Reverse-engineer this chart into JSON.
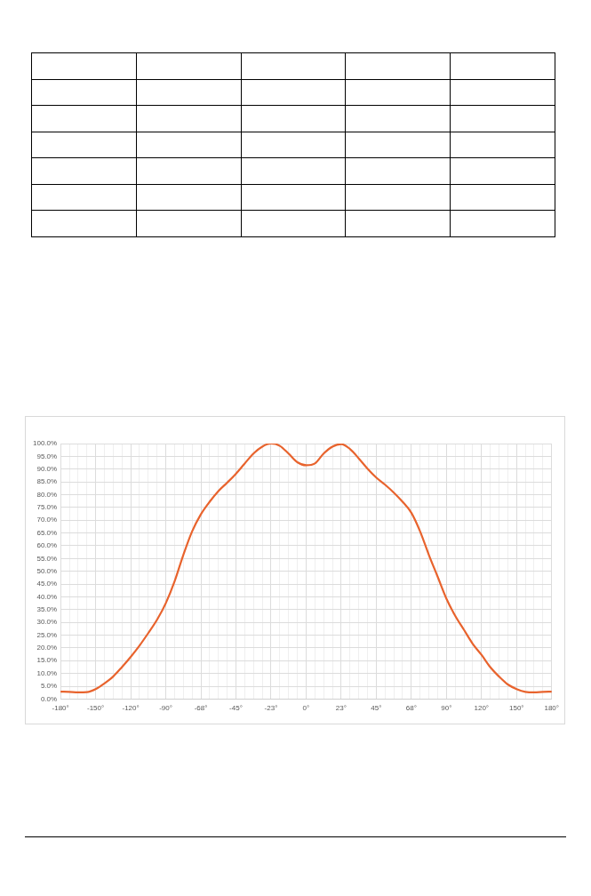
{
  "chart_data": {
    "type": "line",
    "categories": [
      "-180°",
      null,
      null,
      null,
      "-150°",
      null,
      null,
      null,
      "-120°",
      null,
      null,
      null,
      "-90°",
      null,
      null,
      null,
      "-68°",
      null,
      null,
      null,
      "-45°",
      null,
      null,
      null,
      "-23°",
      null,
      null,
      null,
      "0°",
      null,
      null,
      null,
      "23°",
      null,
      null,
      null,
      "45°",
      null,
      null,
      null,
      "68°",
      null,
      null,
      null,
      "90°",
      null,
      null,
      null,
      "120°",
      null,
      null,
      null,
      "150°",
      null,
      null,
      null,
      "180°"
    ],
    "series": [
      {
        "color": "#e8632d",
        "values": [
          2.9,
          2.8,
          2.6,
          2.7,
          3.9,
          6.1,
          8.8,
          12.5,
          16.5,
          20.9,
          25.8,
          31,
          37.5,
          46,
          56.4,
          65.6,
          72.3,
          77.2,
          81.4,
          84.7,
          88.2,
          92.2,
          96.1,
          98.8,
          100,
          99.1,
          96.1,
          92.7,
          91.5,
          92.2,
          96.1,
          98.8,
          99.8,
          97.9,
          94.2,
          90.2,
          86.7,
          83.9,
          80.8,
          77.2,
          72.9,
          65.6,
          56.4,
          47.9,
          39.3,
          32.6,
          27.1,
          21.6,
          17.3,
          12.5,
          8.8,
          5.7,
          3.9,
          2.8,
          2.6,
          2.8,
          2.9
        ]
      }
    ],
    "ylim": [
      0,
      100
    ],
    "yticks": [
      {
        "value": 0,
        "label": "0.0%"
      },
      {
        "value": 5,
        "label": "5.0%"
      },
      {
        "value": 10,
        "label": "10.0%"
      },
      {
        "value": 15,
        "label": "15.0%"
      },
      {
        "value": 20,
        "label": "20.0%"
      },
      {
        "value": 25,
        "label": "25.0%"
      },
      {
        "value": 30,
        "label": "30.0%"
      },
      {
        "value": 35,
        "label": "35.0%"
      },
      {
        "value": 40,
        "label": "40.0%"
      },
      {
        "value": 45,
        "label": "45.0%"
      },
      {
        "value": 50,
        "label": "50.0%"
      },
      {
        "value": 55,
        "label": "55.0%"
      },
      {
        "value": 60,
        "label": "60.0%"
      },
      {
        "value": 65,
        "label": "65.0%"
      },
      {
        "value": 70,
        "label": "70.0%"
      },
      {
        "value": 75,
        "label": "75.0%"
      },
      {
        "value": 80,
        "label": "80.0%"
      },
      {
        "value": 85,
        "label": "85.0%"
      },
      {
        "value": 90,
        "label": "90.0%"
      },
      {
        "value": 95,
        "label": "95.0%"
      },
      {
        "value": 100,
        "label": "100.0%"
      }
    ],
    "grid": true,
    "legend": false,
    "marker": "none",
    "line_style": "solid"
  }
}
